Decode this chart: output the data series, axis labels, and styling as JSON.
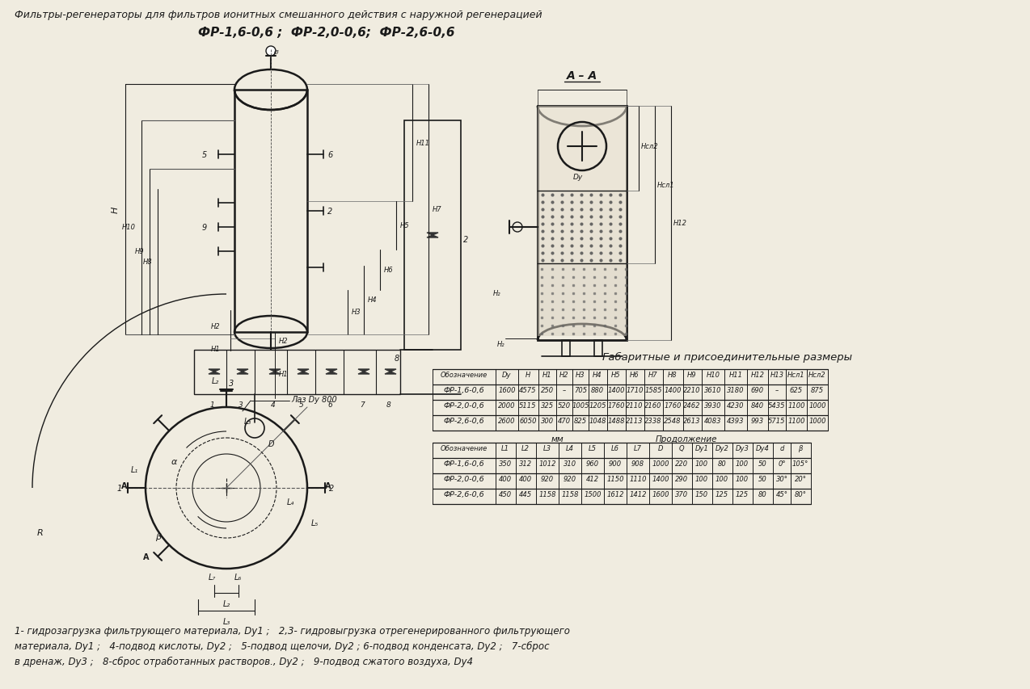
{
  "title_line1": "Фильтры-регенераторы для фильтров ионитных смешанного действия с наружной регенерацией",
  "title_line2": "ФР-1,6-0,6 ;  ФР-2,0-0,6;  ФР-2,6-0,6",
  "section_label": "А – А",
  "table1_title": "Габаритные и присоединительные размеры",
  "table1_header": [
    "Обозначение",
    "Dу",
    "Н",
    "Н1",
    "Н2",
    "Н3",
    "Н4",
    "Н5",
    "Н6",
    "Н7",
    "Н8",
    "Н9",
    "Н10",
    "Н11",
    "Н12",
    "Н13",
    "Нсл1",
    "Нсл2"
  ],
  "table1_rows": [
    [
      "ФР-1,6-0,6",
      "1600",
      "4575",
      "250",
      "–",
      "705",
      "880",
      "1400",
      "1710",
      "1585",
      "1400",
      "2210",
      "3610",
      "3180",
      "690",
      "–",
      "625",
      "875"
    ],
    [
      "ФР-2,0-0,6",
      "2000",
      "5115",
      "325",
      "520",
      "1005",
      "1205",
      "1760",
      "2110",
      "2160",
      "1760",
      "2462",
      "3930",
      "4230",
      "840",
      "5435",
      "1100",
      "1000"
    ],
    [
      "ФР-2,6-0,6",
      "2600",
      "6050",
      "300",
      "470",
      "825",
      "1048",
      "1488",
      "2113",
      "2338",
      "2548",
      "2613",
      "4083",
      "4393",
      "993",
      "5715",
      "1100",
      "1000"
    ]
  ],
  "table2_mm_label": "мм",
  "table2_cont_label": "Продолжение",
  "table2_header": [
    "Обозначение",
    "L1",
    "L2",
    "L3",
    "L4",
    "L5",
    "L6",
    "L7",
    "D",
    "Q",
    "Dу1",
    "Dу2",
    "Dу3",
    "Dу4",
    "d",
    "β"
  ],
  "table2_rows": [
    [
      "ФР-1,6-0,6",
      "350",
      "312",
      "1012",
      "310",
      "960",
      "900",
      "908",
      "1000",
      "220",
      "100",
      "80",
      "100",
      "50",
      "0°",
      "105°"
    ],
    [
      "ФР-2,0-0,6",
      "400",
      "400",
      "920",
      "920",
      "412",
      "1150",
      "1110",
      "1400",
      "290",
      "100",
      "100",
      "100",
      "50",
      "30°",
      "20°"
    ],
    [
      "ФР-2,6-0,6",
      "450",
      "445",
      "1158",
      "1158",
      "1500",
      "1612",
      "1412",
      "1600",
      "370",
      "150",
      "125",
      "125",
      "80",
      "45°",
      "80°"
    ]
  ],
  "footnote_line1": "1- гидрозагрузка фильтрующего материала, Dу1 ;   2,3- гидровыгрузка отрегенерированного фильтрующего",
  "footnote_line2": "материала, Dу1 ;   4-подвод кислоты, Dу2 ;   5-подвод щелочи, Dу2 ; 6-подвод конденсата, Dу2 ;   7-сброс",
  "footnote_line3": "в дренаж, Dу3 ;   8-сброс отработанных растворов., Dу2 ;   9-подвод сжатого воздуха, Dу4",
  "bg_color": "#f0ece0",
  "line_color": "#1a1a1a",
  "text_color": "#1a1a1a"
}
